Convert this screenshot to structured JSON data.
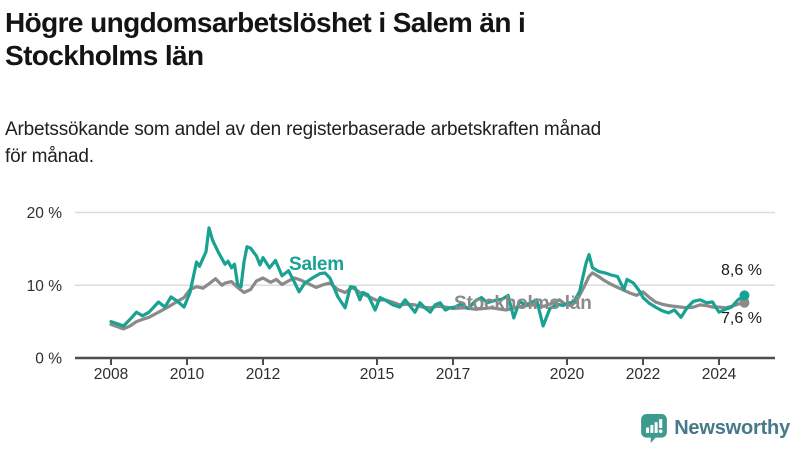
{
  "header": {
    "title": "Högre ungdomsarbetslöshet i Salem än i Stockholms län",
    "title_line1": "Högre ungdomsarbetslöshet i Salem än i",
    "title_line2": "Stockholms län",
    "subtitle": "Arbetssökande som andel av den registerbaserade arbetskraften månad för månad.",
    "subtitle_line1": "Arbetssökande som andel av den registerbaserade arbetskraften månad",
    "subtitle_line2": "för månad."
  },
  "chart_data": {
    "type": "line",
    "title": "Högre ungdomsarbetslöshet i Salem än i Stockholms län",
    "subtitle": "Arbetssökande som andel av den registerbaserade arbetskraften månad för månad.",
    "xlabel": "",
    "ylabel": "",
    "unit": "%",
    "ylim": [
      0,
      20
    ],
    "grid": "horizontal",
    "legend_position": "inline-labels",
    "x_axis": {
      "ticks": [
        {
          "year": 2008,
          "label": "2008"
        },
        {
          "year": 2010,
          "label": "2010"
        },
        {
          "year": 2012,
          "label": "2012"
        },
        {
          "year": 2015,
          "label": "2015"
        },
        {
          "year": 2017,
          "label": "2017"
        },
        {
          "year": 2020,
          "label": "2020"
        },
        {
          "year": 2022,
          "label": "2022"
        },
        {
          "year": 2024,
          "label": "2024"
        }
      ]
    },
    "y_axis": {
      "ticks": [
        {
          "value": 0,
          "label": "0 %"
        },
        {
          "value": 10,
          "label": "10 %"
        },
        {
          "value": 20,
          "label": "20 %"
        }
      ]
    },
    "series": [
      {
        "name": "Stockholms län",
        "color": "#8a8a8a",
        "end_value": 7.6,
        "end_value_label": "7,6 %",
        "points": [
          [
            2008.0,
            4.6
          ],
          [
            2008.17,
            4.3
          ],
          [
            2008.33,
            4.0
          ],
          [
            2008.5,
            4.4
          ],
          [
            2008.67,
            5.0
          ],
          [
            2008.83,
            5.3
          ],
          [
            2009.0,
            5.6
          ],
          [
            2009.25,
            6.3
          ],
          [
            2009.5,
            7.0
          ],
          [
            2009.75,
            7.8
          ],
          [
            2009.92,
            8.3
          ],
          [
            2010.08,
            9.4
          ],
          [
            2010.25,
            9.8
          ],
          [
            2010.42,
            9.6
          ],
          [
            2010.58,
            10.2
          ],
          [
            2010.75,
            10.9
          ],
          [
            2010.92,
            10.0
          ],
          [
            2011.0,
            10.3
          ],
          [
            2011.17,
            10.5
          ],
          [
            2011.33,
            9.7
          ],
          [
            2011.5,
            9.0
          ],
          [
            2011.67,
            9.4
          ],
          [
            2011.83,
            10.6
          ],
          [
            2012.0,
            11.0
          ],
          [
            2012.2,
            10.4
          ],
          [
            2012.35,
            10.8
          ],
          [
            2012.5,
            10.1
          ],
          [
            2012.67,
            10.6
          ],
          [
            2012.83,
            11.0
          ],
          [
            2013.0,
            10.7
          ],
          [
            2013.2,
            10.2
          ],
          [
            2013.4,
            9.7
          ],
          [
            2013.6,
            10.1
          ],
          [
            2013.76,
            10.3
          ],
          [
            2013.97,
            9.4
          ],
          [
            2014.16,
            9.0
          ],
          [
            2014.35,
            9.7
          ],
          [
            2014.55,
            9.0
          ],
          [
            2014.8,
            8.4
          ],
          [
            2015.0,
            7.9
          ],
          [
            2015.2,
            8.0
          ],
          [
            2015.45,
            7.6
          ],
          [
            2015.6,
            7.3
          ],
          [
            2015.8,
            7.4
          ],
          [
            2016.0,
            7.3
          ],
          [
            2016.2,
            7.0
          ],
          [
            2016.4,
            6.9
          ],
          [
            2016.6,
            7.1
          ],
          [
            2016.8,
            7.0
          ],
          [
            2017.0,
            6.8
          ],
          [
            2017.3,
            6.9
          ],
          [
            2017.6,
            6.7
          ],
          [
            2018.0,
            6.9
          ],
          [
            2018.4,
            6.6
          ],
          [
            2018.8,
            7.1
          ],
          [
            2019.1,
            7.3
          ],
          [
            2019.4,
            7.1
          ],
          [
            2019.6,
            7.5
          ],
          [
            2019.8,
            8.0
          ],
          [
            2019.95,
            7.4
          ],
          [
            2020.1,
            7.2
          ],
          [
            2020.25,
            7.8
          ],
          [
            2020.42,
            9.5
          ],
          [
            2020.58,
            11.2
          ],
          [
            2020.67,
            11.7
          ],
          [
            2020.83,
            11.2
          ],
          [
            2021.0,
            10.6
          ],
          [
            2021.17,
            10.1
          ],
          [
            2021.33,
            9.7
          ],
          [
            2021.5,
            9.3
          ],
          [
            2021.67,
            8.9
          ],
          [
            2021.83,
            8.6
          ],
          [
            2022.0,
            9.1
          ],
          [
            2022.17,
            8.3
          ],
          [
            2022.33,
            7.7
          ],
          [
            2022.5,
            7.4
          ],
          [
            2022.67,
            7.2
          ],
          [
            2022.83,
            7.1
          ],
          [
            2023.0,
            7.0
          ],
          [
            2023.17,
            6.9
          ],
          [
            2023.33,
            7.0
          ],
          [
            2023.5,
            7.3
          ],
          [
            2023.67,
            7.2
          ],
          [
            2023.83,
            7.0
          ],
          [
            2024.0,
            7.0
          ],
          [
            2024.17,
            6.9
          ],
          [
            2024.33,
            7.1
          ],
          [
            2024.5,
            7.4
          ],
          [
            2024.67,
            7.6
          ]
        ]
      },
      {
        "name": "Salem",
        "color": "#19a291",
        "end_value": 8.6,
        "end_value_label": "8,6 %",
        "points": [
          [
            2008.0,
            5.0
          ],
          [
            2008.17,
            4.7
          ],
          [
            2008.33,
            4.4
          ],
          [
            2008.5,
            5.3
          ],
          [
            2008.67,
            6.3
          ],
          [
            2008.83,
            5.8
          ],
          [
            2009.0,
            6.3
          ],
          [
            2009.25,
            7.7
          ],
          [
            2009.42,
            7.0
          ],
          [
            2009.58,
            8.4
          ],
          [
            2009.75,
            7.8
          ],
          [
            2009.92,
            7.0
          ],
          [
            2010.08,
            9.0
          ],
          [
            2010.25,
            13.2
          ],
          [
            2010.33,
            12.6
          ],
          [
            2010.42,
            13.7
          ],
          [
            2010.5,
            14.6
          ],
          [
            2010.58,
            17.9
          ],
          [
            2010.67,
            16.2
          ],
          [
            2010.83,
            14.5
          ],
          [
            2011.0,
            12.9
          ],
          [
            2011.08,
            13.3
          ],
          [
            2011.17,
            12.4
          ],
          [
            2011.25,
            12.9
          ],
          [
            2011.33,
            10.2
          ],
          [
            2011.42,
            9.8
          ],
          [
            2011.5,
            13.2
          ],
          [
            2011.58,
            15.3
          ],
          [
            2011.67,
            15.1
          ],
          [
            2011.83,
            14.0
          ],
          [
            2011.92,
            12.8
          ],
          [
            2012.0,
            13.8
          ],
          [
            2012.17,
            12.4
          ],
          [
            2012.33,
            13.4
          ],
          [
            2012.5,
            11.3
          ],
          [
            2012.67,
            12.0
          ],
          [
            2012.83,
            10.4
          ],
          [
            2012.95,
            9.1
          ],
          [
            2013.1,
            10.3
          ],
          [
            2013.3,
            11.0
          ],
          [
            2013.5,
            11.6
          ],
          [
            2013.63,
            11.7
          ],
          [
            2013.76,
            11.0
          ],
          [
            2013.97,
            8.4
          ],
          [
            2014.16,
            6.9
          ],
          [
            2014.3,
            9.8
          ],
          [
            2014.42,
            9.7
          ],
          [
            2014.55,
            8.0
          ],
          [
            2014.63,
            9.0
          ],
          [
            2014.76,
            8.7
          ],
          [
            2014.95,
            6.6
          ],
          [
            2015.08,
            8.3
          ],
          [
            2015.2,
            8.0
          ],
          [
            2015.42,
            7.3
          ],
          [
            2015.6,
            7.0
          ],
          [
            2015.74,
            8.0
          ],
          [
            2016.0,
            6.3
          ],
          [
            2016.13,
            7.6
          ],
          [
            2016.26,
            6.9
          ],
          [
            2016.4,
            6.3
          ],
          [
            2016.53,
            7.3
          ],
          [
            2016.66,
            7.6
          ],
          [
            2016.8,
            6.6
          ],
          [
            2016.92,
            6.9
          ],
          [
            2017.05,
            7.0
          ],
          [
            2017.2,
            7.4
          ],
          [
            2017.4,
            6.8
          ],
          [
            2017.6,
            7.9
          ],
          [
            2017.75,
            8.3
          ],
          [
            2017.9,
            7.6
          ],
          [
            2018.1,
            7.9
          ],
          [
            2018.3,
            8.1
          ],
          [
            2018.45,
            8.6
          ],
          [
            2018.6,
            5.5
          ],
          [
            2018.75,
            7.8
          ],
          [
            2018.9,
            7.3
          ],
          [
            2019.05,
            7.6
          ],
          [
            2019.2,
            8.0
          ],
          [
            2019.37,
            4.4
          ],
          [
            2019.55,
            6.8
          ],
          [
            2019.75,
            7.4
          ],
          [
            2019.9,
            7.2
          ],
          [
            2020.0,
            7.5
          ],
          [
            2020.17,
            7.7
          ],
          [
            2020.33,
            9.1
          ],
          [
            2020.5,
            13.0
          ],
          [
            2020.58,
            14.2
          ],
          [
            2020.67,
            12.4
          ],
          [
            2020.83,
            11.9
          ],
          [
            2021.0,
            11.7
          ],
          [
            2021.17,
            11.4
          ],
          [
            2021.33,
            11.2
          ],
          [
            2021.5,
            9.4
          ],
          [
            2021.58,
            10.8
          ],
          [
            2021.75,
            10.3
          ],
          [
            2021.92,
            9.1
          ],
          [
            2022.0,
            8.3
          ],
          [
            2022.17,
            7.5
          ],
          [
            2022.33,
            7.0
          ],
          [
            2022.5,
            6.5
          ],
          [
            2022.67,
            6.2
          ],
          [
            2022.83,
            6.6
          ],
          [
            2023.0,
            5.6
          ],
          [
            2023.17,
            7.0
          ],
          [
            2023.33,
            7.8
          ],
          [
            2023.5,
            8.0
          ],
          [
            2023.67,
            7.6
          ],
          [
            2023.83,
            7.7
          ],
          [
            2024.0,
            6.3
          ],
          [
            2024.17,
            6.7
          ],
          [
            2024.33,
            7.0
          ],
          [
            2024.5,
            8.0
          ],
          [
            2024.67,
            8.6
          ]
        ]
      }
    ],
    "annotations": {
      "salem_label": "Salem",
      "stockholm_label": "Stockholms län",
      "salem_end": "8,6 %",
      "stockholm_end": "7,6 %"
    },
    "colors": {
      "salem": "#19a291",
      "stockholms_lan": "#8a8a8a",
      "gridline": "#dcdcdc",
      "axis": "#4d4d4d"
    }
  },
  "footer": {
    "brand": "Newsworthy",
    "logo_icon": "bar-chart-speech-bubble-icon",
    "brand_color": "#46798a",
    "icon_color": "#3d9a8e"
  }
}
